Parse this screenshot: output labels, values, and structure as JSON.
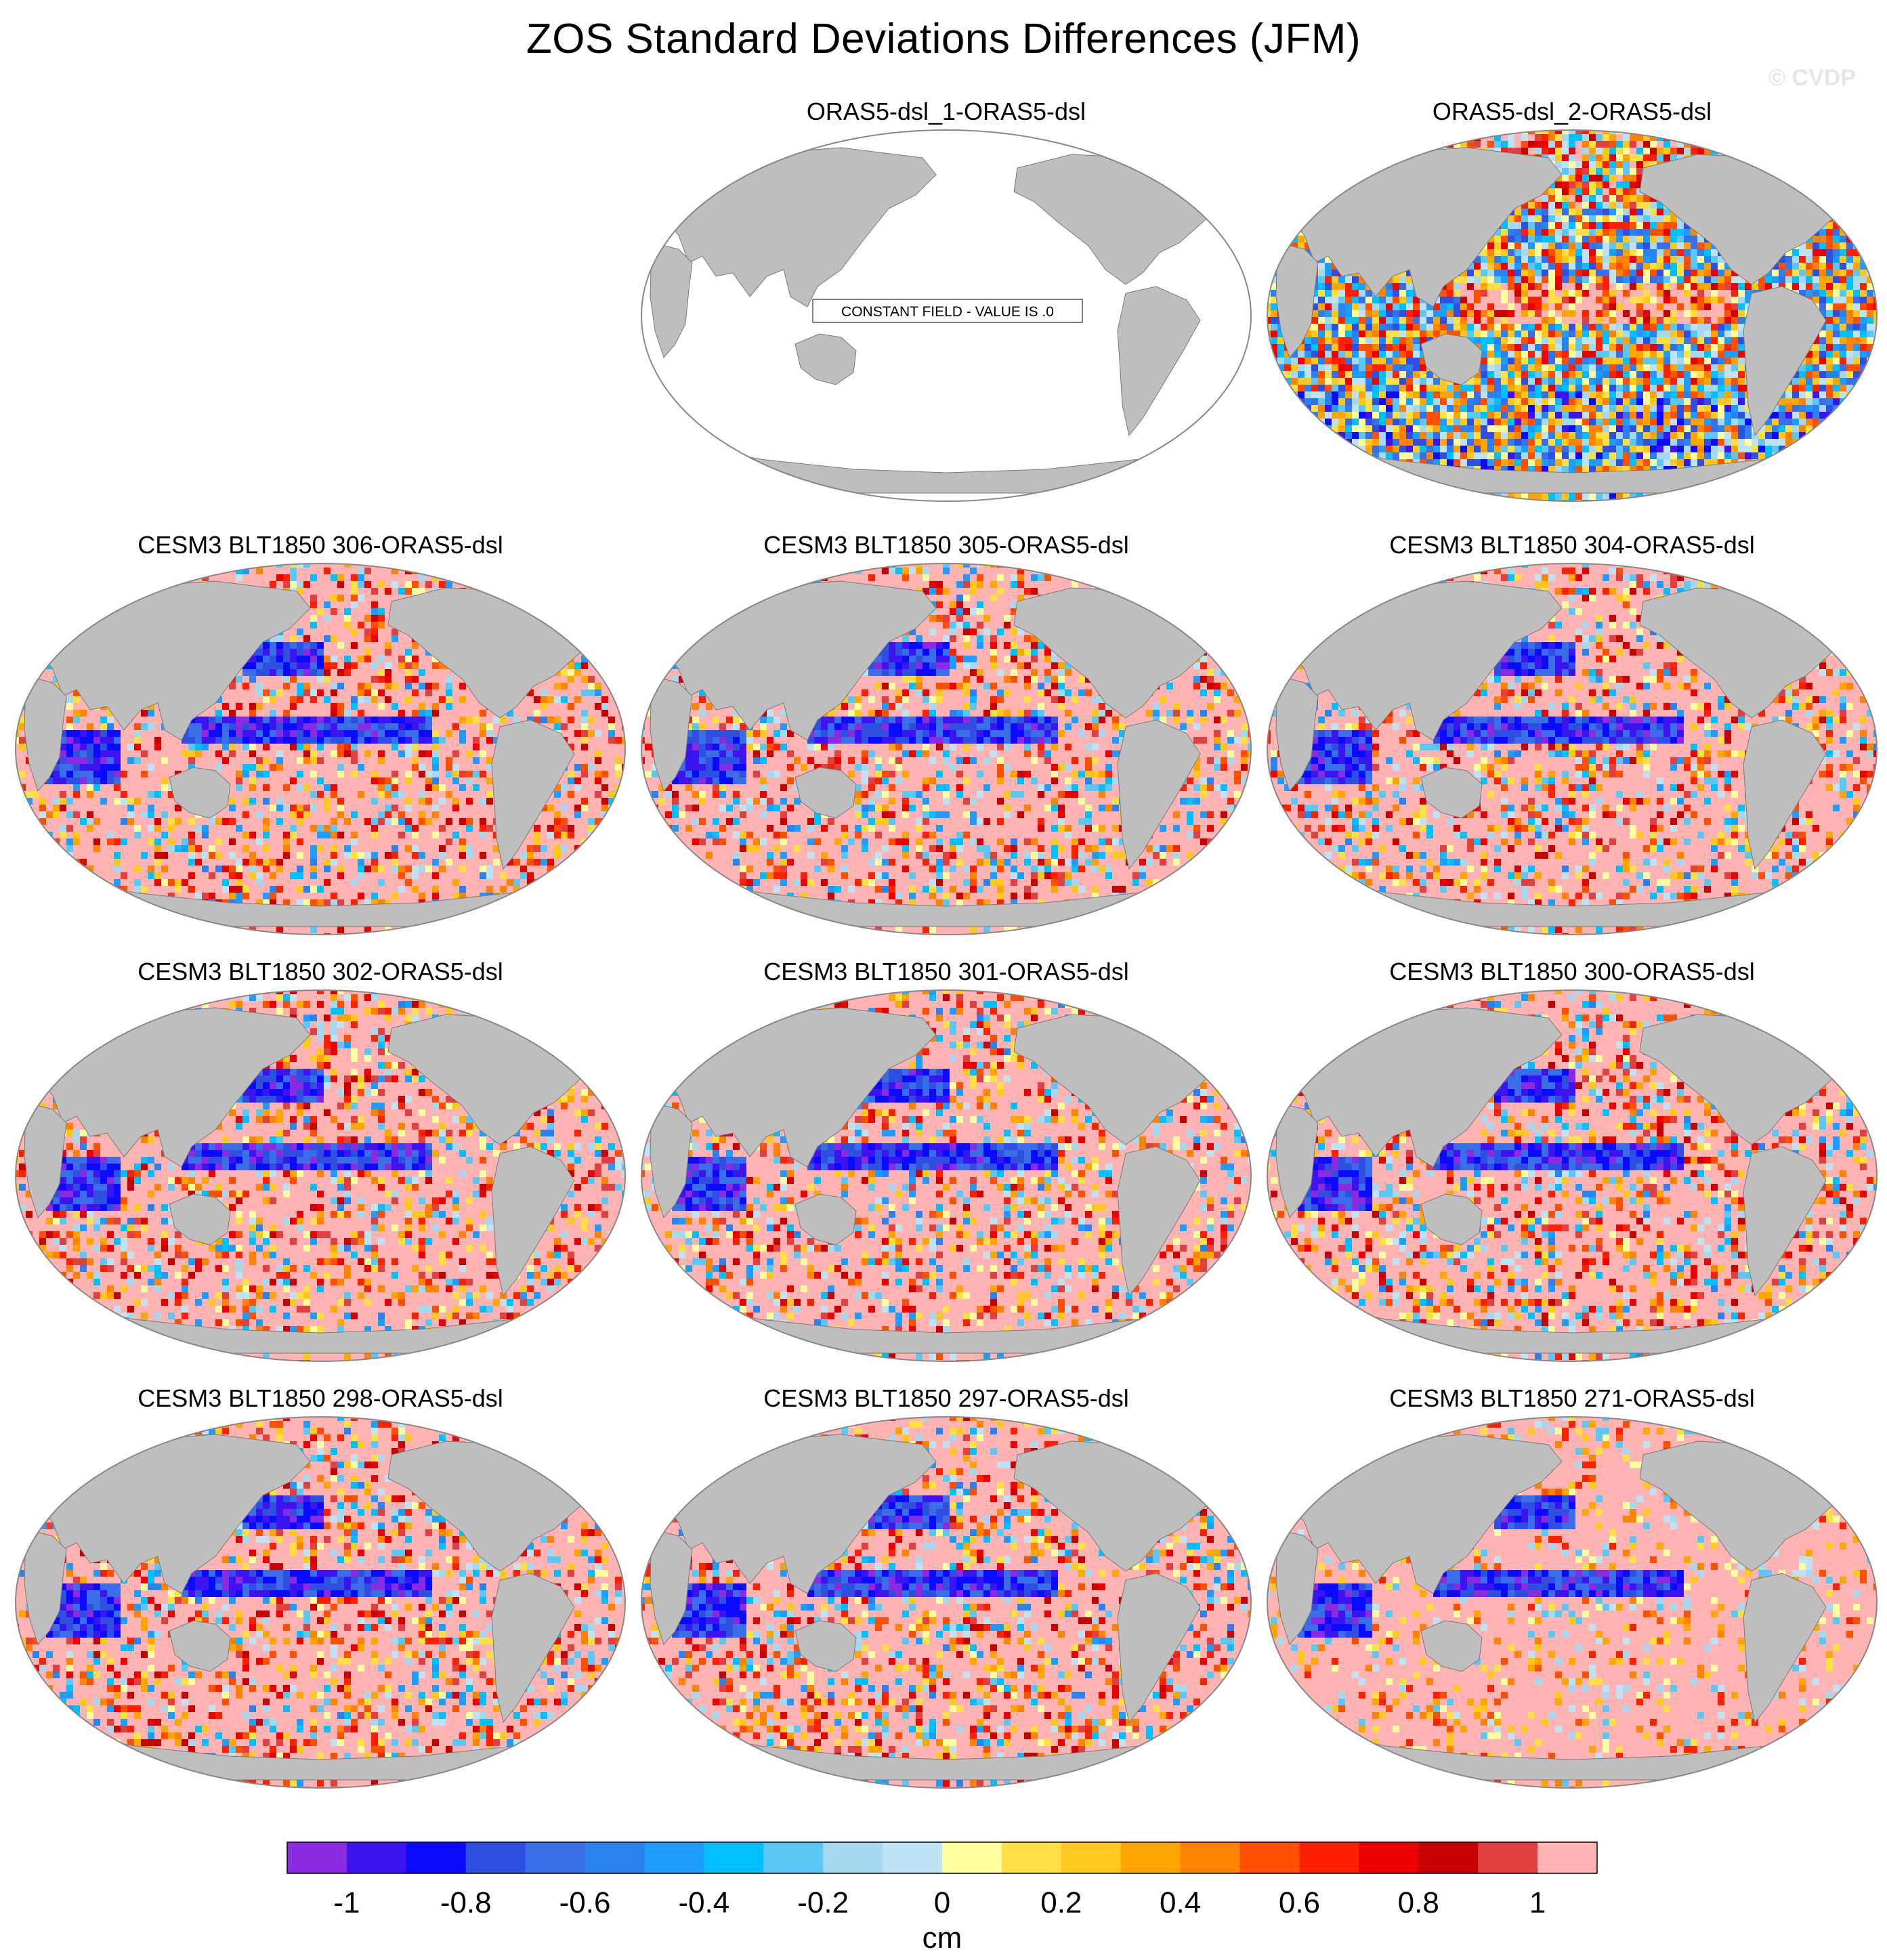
{
  "figure": {
    "title": "ZOS Standard Deviations Differences (JFM)",
    "watermark": "© CVDP"
  },
  "colors": {
    "land": "#bebebe",
    "ocean_blank": "#ffffff",
    "background_pink": "#ffb3b3",
    "outline": "#888888"
  },
  "panels": [
    {
      "title": "ORAS5-dsl_1-ORAS5-dsl",
      "constant": true,
      "label": "CONSTANT FIELD - VALUE IS .0"
    },
    {
      "title": "ORAS5-dsl_2-ORAS5-dsl",
      "constant": false,
      "pattern": "mixed",
      "seed": 7
    },
    {
      "title": "CESM3 BLT1850 306-ORAS5-dsl",
      "constant": false,
      "pattern": "model",
      "seed": 11
    },
    {
      "title": "CESM3 BLT1850 305-ORAS5-dsl",
      "constant": false,
      "pattern": "model",
      "seed": 23
    },
    {
      "title": "CESM3 BLT1850 304-ORAS5-dsl",
      "constant": false,
      "pattern": "model",
      "seed": 37
    },
    {
      "title": "CESM3 BLT1850 302-ORAS5-dsl",
      "constant": false,
      "pattern": "model",
      "seed": 41
    },
    {
      "title": "CESM3 BLT1850 301-ORAS5-dsl",
      "constant": false,
      "pattern": "model",
      "seed": 53
    },
    {
      "title": "CESM3 BLT1850 300-ORAS5-dsl",
      "constant": false,
      "pattern": "model",
      "seed": 67
    },
    {
      "title": "CESM3 BLT1850 298-ORAS5-dsl",
      "constant": false,
      "pattern": "model",
      "seed": 71
    },
    {
      "title": "CESM3 BLT1850 297-ORAS5-dsl",
      "constant": false,
      "pattern": "model",
      "seed": 83
    },
    {
      "title": "CESM3 BLT1850 271-ORAS5-dsl",
      "constant": false,
      "pattern": "model_weak",
      "seed": 97
    }
  ],
  "colorbar": {
    "unit": "cm",
    "tick_labels": [
      "-1",
      "-0.8",
      "-0.6",
      "-0.4",
      "-0.2",
      "0",
      "0.2",
      "0.4",
      "0.6",
      "0.8",
      "1"
    ],
    "colors": [
      "#8a2be2",
      "#3c14f0",
      "#0a0aff",
      "#2e4fe0",
      "#3a6ee8",
      "#2a82f0",
      "#1e9cff",
      "#00bfff",
      "#5cc6f5",
      "#a6d8f0",
      "#bfe3f5",
      "#ffffa0",
      "#ffe044",
      "#ffc81e",
      "#ffa500",
      "#ff8200",
      "#ff5000",
      "#ff2000",
      "#ee0000",
      "#c80000",
      "#e04040",
      "#ffb3b3"
    ]
  }
}
